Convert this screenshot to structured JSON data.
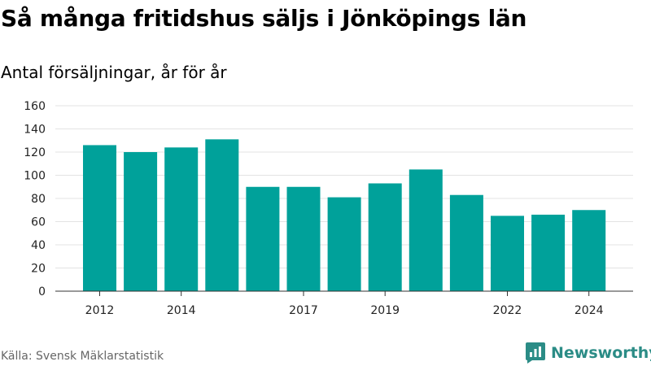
{
  "title": "Så många fritidshus säljs i Jönköpings län",
  "subtitle": "Antal försäljningar, år för år",
  "source": "Källa: Svensk Mäklarstatistik",
  "brand": "Newsworthy",
  "colors": {
    "bar": "#00a19a",
    "grid": "#e3e3e3",
    "axis": "#333333",
    "brand": "#2b8c86"
  },
  "chart_data": {
    "type": "bar",
    "categories": [
      "2012",
      "2013",
      "2014",
      "2015",
      "2016",
      "2017",
      "2018",
      "2019",
      "2020",
      "2021",
      "2022",
      "2023",
      "2024"
    ],
    "values": [
      126,
      120,
      124,
      131,
      90,
      90,
      81,
      93,
      105,
      83,
      65,
      66,
      70
    ],
    "x_tick_labels": [
      "2012",
      "2014",
      "2017",
      "2019",
      "2022",
      "2024"
    ],
    "y_ticks": [
      0,
      20,
      40,
      60,
      80,
      100,
      120,
      140,
      160
    ],
    "ylim": [
      0,
      160
    ],
    "grid": true,
    "legend": "none"
  }
}
